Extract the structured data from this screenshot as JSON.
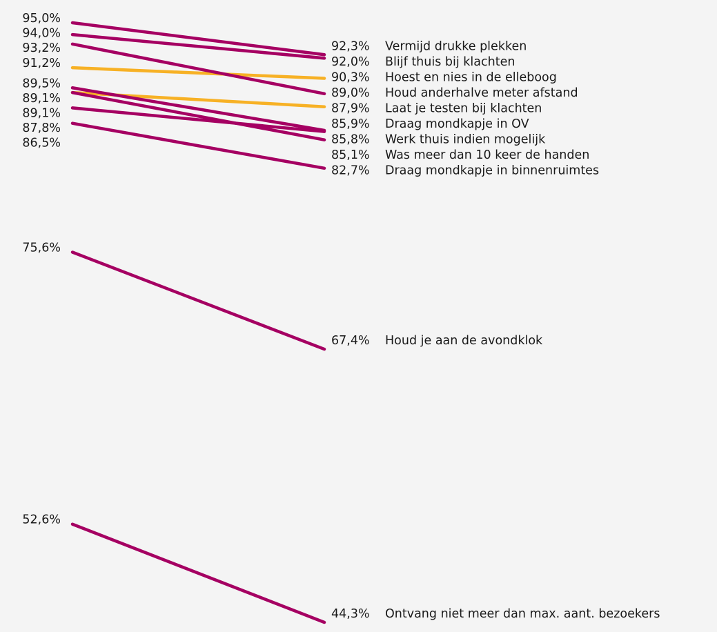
{
  "chart_data": {
    "type": "slope",
    "series": [
      {
        "name": "Vermijd drukke plekken",
        "color": "#a50062",
        "values": [
          95.0,
          92.3
        ],
        "value_labels": [
          "95,0%",
          "92,3%"
        ]
      },
      {
        "name": "Blijf thuis bij klachten",
        "color": "#a50062",
        "values": [
          94.0,
          92.0
        ],
        "value_labels": [
          "94,0%",
          "92,0%"
        ]
      },
      {
        "name": "Hoest en nies in de elleboog",
        "color": "#f7b125",
        "values": [
          91.2,
          90.3
        ],
        "value_labels": [
          "91,2%",
          "90,3%"
        ]
      },
      {
        "name": "Houd anderhalve meter afstand",
        "color": "#a50062",
        "values": [
          93.2,
          89.0
        ],
        "value_labels": [
          "93,2%",
          "89,0%"
        ]
      },
      {
        "name": "Laat je testen bij klachten",
        "color": "#f7b125",
        "values": [
          89.1,
          87.9
        ],
        "value_labels": [
          "89,1%",
          "87,9%"
        ]
      },
      {
        "name": "Draag mondkapje in OV",
        "color": "#a50062",
        "values": [
          89.5,
          85.9
        ],
        "value_labels": [
          "89,5%",
          "85,9%"
        ]
      },
      {
        "name": "Werk thuis indien mogelijk",
        "color": "#a50062",
        "values": [
          87.8,
          85.8
        ],
        "value_labels": [
          "87,8%",
          "85,8%"
        ]
      },
      {
        "name": "Was meer dan 10 keer de handen",
        "color": "#a50062",
        "values": [
          89.1,
          85.1
        ],
        "value_labels": [
          "89,1%",
          "85,1%"
        ]
      },
      {
        "name": "Draag mondkapje in binnenruimtes",
        "color": "#a50062",
        "values": [
          86.5,
          82.7
        ],
        "value_labels": [
          "86,5%",
          "82,7%"
        ]
      },
      {
        "name": "Houd je aan de avondklok",
        "color": "#a50062",
        "values": [
          75.6,
          67.4
        ],
        "value_labels": [
          "75,6%",
          "67,4%"
        ]
      },
      {
        "name": "Ontvang niet meer dan max. aant. bezoekers",
        "color": "#a50062",
        "values": [
          52.6,
          44.3
        ],
        "value_labels": [
          "52,6%",
          "44,3%"
        ]
      }
    ]
  }
}
